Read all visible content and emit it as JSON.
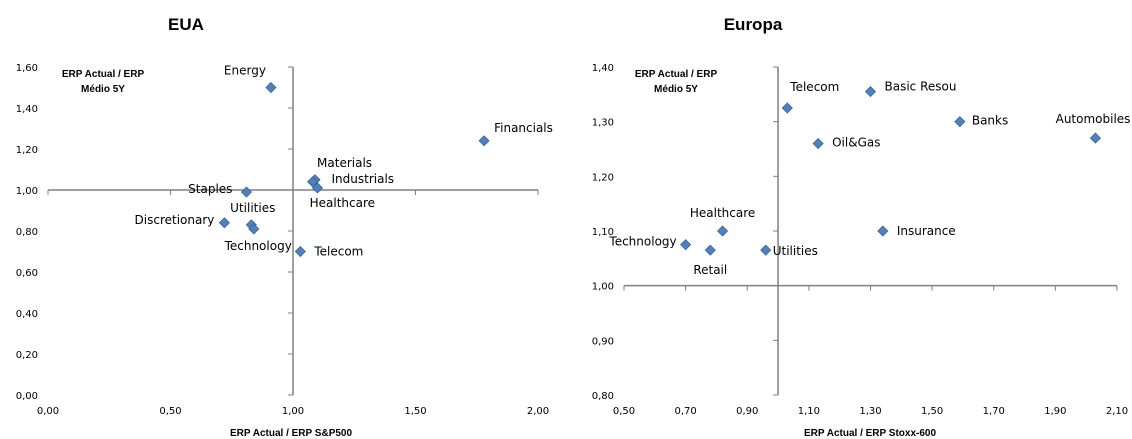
{
  "chart_data": [
    {
      "type": "scatter",
      "title": "EUA",
      "xlabel": "ERP Actual / ERP S&P500",
      "ylabel_lines": [
        "ERP Actual / ERP",
        "Médio 5Y"
      ],
      "xlim": [
        0,
        2
      ],
      "ylim": [
        0,
        1.6
      ],
      "xticks": [
        "0,00",
        "0,50",
        "1,00",
        "1,50",
        "2,00"
      ],
      "yticks": [
        "0,00",
        "0,20",
        "0,40",
        "0,60",
        "0,80",
        "1,00",
        "1,20",
        "1,40",
        "1,60"
      ],
      "x_cross": 1.0,
      "y_cross": 1.0,
      "marker_color": "#4F81BD",
      "points": [
        {
          "label": "Energy",
          "x": 0.91,
          "y": 1.5
        },
        {
          "label": "Financials",
          "x": 1.78,
          "y": 1.24
        },
        {
          "label": "Materials",
          "x": 1.09,
          "y": 1.05
        },
        {
          "label": "Industrials",
          "x": 1.1,
          "y": 1.01
        },
        {
          "label": "Staples",
          "x": 0.81,
          "y": 0.99
        },
        {
          "label": "Healthcare",
          "x": 1.08,
          "y": 1.04
        },
        {
          "label": "Discretionary",
          "x": 0.72,
          "y": 0.84
        },
        {
          "label": "Utilities",
          "x": 0.83,
          "y": 0.83
        },
        {
          "label": "Technology",
          "x": 0.84,
          "y": 0.81
        },
        {
          "label": "Telecom",
          "x": 1.03,
          "y": 0.7
        }
      ]
    },
    {
      "type": "scatter",
      "title": "Europa",
      "xlabel": "ERP Actual / ERP Stoxx-600",
      "ylabel_lines": [
        "ERP Actual / ERP",
        "Médio 5Y"
      ],
      "xlim": [
        0.5,
        2.1
      ],
      "ylim": [
        0.8,
        1.4
      ],
      "xticks": [
        "0,50",
        "0,70",
        "0,90",
        "1,10",
        "1,30",
        "1,50",
        "1,70",
        "1,90",
        "2,10"
      ],
      "yticks": [
        "0,80",
        "0,90",
        "1,00",
        "1,10",
        "1,20",
        "1,30",
        "1,40"
      ],
      "x_cross": 1.0,
      "y_cross": 1.0,
      "marker_color": "#4F81BD",
      "points": [
        {
          "label": "Telecom",
          "x": 1.03,
          "y": 1.325
        },
        {
          "label": "Basic Resou",
          "x": 1.3,
          "y": 1.355
        },
        {
          "label": "Banks",
          "x": 1.59,
          "y": 1.3
        },
        {
          "label": "Automobiles",
          "x": 2.03,
          "y": 1.27
        },
        {
          "label": "Oil&Gas",
          "x": 1.13,
          "y": 1.26
        },
        {
          "label": "Healthcare",
          "x": 0.82,
          "y": 1.1
        },
        {
          "label": "Insurance",
          "x": 1.34,
          "y": 1.1
        },
        {
          "label": "Technology",
          "x": 0.7,
          "y": 1.075
        },
        {
          "label": "Retail",
          "x": 0.78,
          "y": 1.065
        },
        {
          "label": "Utilities",
          "x": 0.96,
          "y": 1.065
        }
      ]
    }
  ]
}
